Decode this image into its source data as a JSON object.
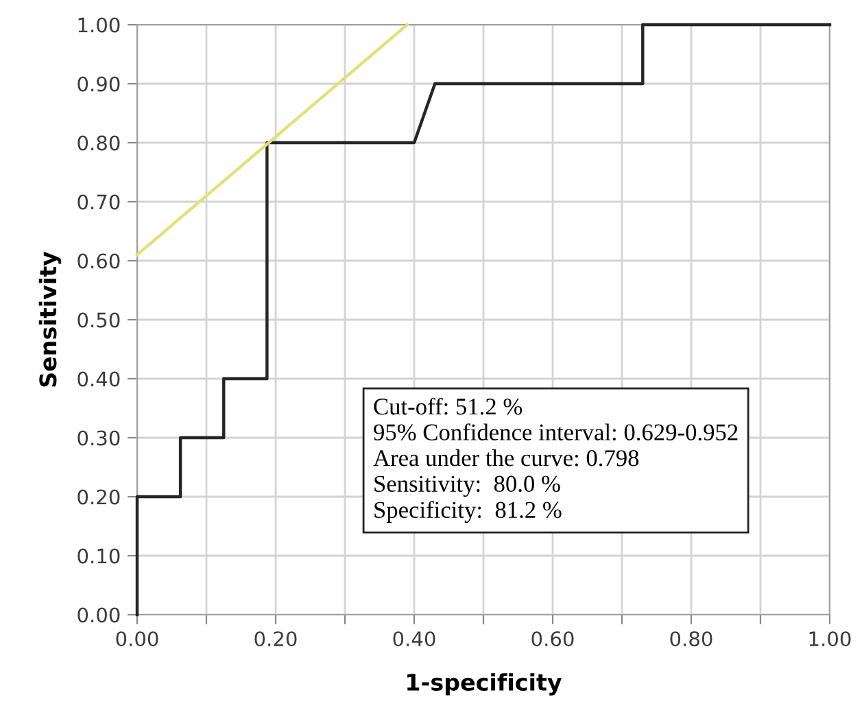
{
  "chart_data": {
    "type": "line",
    "xlabel": "1-specificity",
    "ylabel": "Sensitivity",
    "series": [
      {
        "x": [
          0,
          0,
          0.0625,
          0.0625,
          0.125,
          0.125,
          0.1875,
          0.1875,
          0.4,
          0.43,
          0.73,
          0.73,
          1.0
        ],
        "values": [
          0,
          0.2,
          0.2,
          0.3,
          0.3,
          0.4,
          0.4,
          0.8,
          0.8,
          0.9,
          0.9,
          1.0,
          1.0
        ],
        "color": "#262626"
      },
      {
        "x": [
          0,
          0.39
        ],
        "values": [
          0.61,
          1.0
        ],
        "color": "#e3e07a"
      }
    ],
    "xlim": [
      0,
      1
    ],
    "ylim": [
      0,
      1
    ],
    "xticks": [
      {
        "value": 0,
        "label": "0.00"
      },
      {
        "value": 0.1,
        "label": null
      },
      {
        "value": 0.2,
        "label": "0.20"
      },
      {
        "value": 0.3,
        "label": null
      },
      {
        "value": 0.4,
        "label": "0.40"
      },
      {
        "value": 0.5,
        "label": null
      },
      {
        "value": 0.6,
        "label": "0.60"
      },
      {
        "value": 0.7,
        "label": null
      },
      {
        "value": 0.8,
        "label": "0.80"
      },
      {
        "value": 0.9,
        "label": null
      },
      {
        "value": 1.0,
        "label": "1.00"
      }
    ],
    "yticks": [
      {
        "value": 0,
        "label": "0.00"
      },
      {
        "value": 0.1,
        "label": "0.10"
      },
      {
        "value": 0.2,
        "label": "0.20"
      },
      {
        "value": 0.3,
        "label": "0.30"
      },
      {
        "value": 0.4,
        "label": "0.40"
      },
      {
        "value": 0.5,
        "label": "0.50"
      },
      {
        "value": 0.6,
        "label": "0.60"
      },
      {
        "value": 0.7,
        "label": "0.70"
      },
      {
        "value": 0.8,
        "label": "0.80"
      },
      {
        "value": 0.9,
        "label": "0.90"
      },
      {
        "value": 1.0,
        "label": "1.00"
      }
    ],
    "grid": true,
    "legend": false,
    "marker": "none",
    "line_style": "solid",
    "annotations": [
      "Cut-off: 51.2 %",
      "95% Confidence interval: 0.629-0.952",
      "Area under the curve: 0.798",
      "Sensitivity:  80.0 %",
      "Specificity:  81.2 %"
    ]
  }
}
